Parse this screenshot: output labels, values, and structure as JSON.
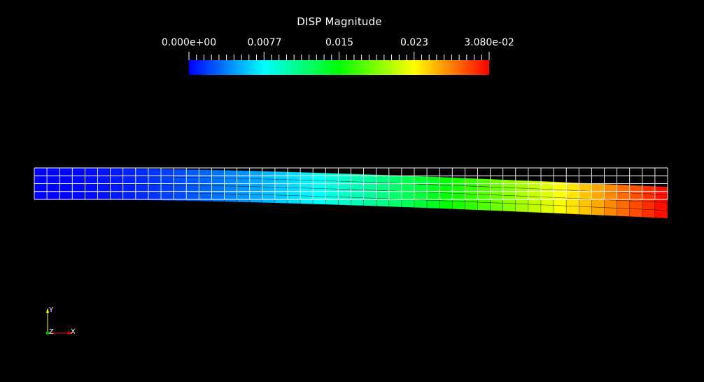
{
  "legend": {
    "title": "DISP Magnitude",
    "tick_labels": [
      "0.000e+00",
      "0.0077",
      "0.015",
      "0.023",
      "3.080e-02"
    ],
    "range": [
      0.0,
      0.0308
    ],
    "colormap": "rainbow (blue-cyan-green-yellow-red)"
  },
  "axes_triad": {
    "labels": [
      "Y",
      "Z",
      "X"
    ],
    "colors": {
      "y": "#ffff00",
      "z": "#00ff00",
      "x": "#ff0000"
    }
  },
  "colors": {
    "background": "#000000",
    "undeformed_mesh": "#ffffff",
    "deformed_edges": "#000000"
  }
}
